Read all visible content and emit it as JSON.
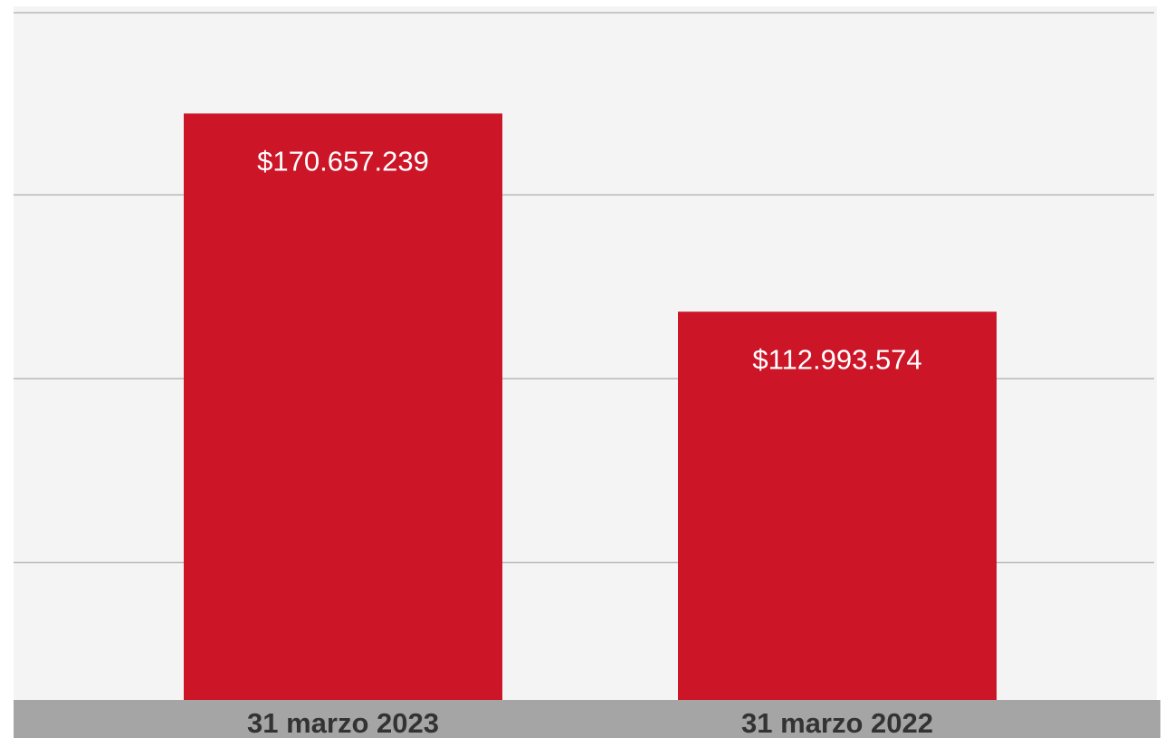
{
  "chart_data": {
    "type": "bar",
    "categories": [
      "31 marzo 2023",
      "31 marzo 2022"
    ],
    "values": [
      170657239,
      112993574
    ],
    "value_labels": [
      "$170.657.239",
      "$112.993.574"
    ],
    "color": "#cc1628",
    "ylim": [
      0,
      200000000
    ],
    "yticks": [
      40000000,
      93500000,
      147000000,
      200000000
    ],
    "grid": true
  }
}
